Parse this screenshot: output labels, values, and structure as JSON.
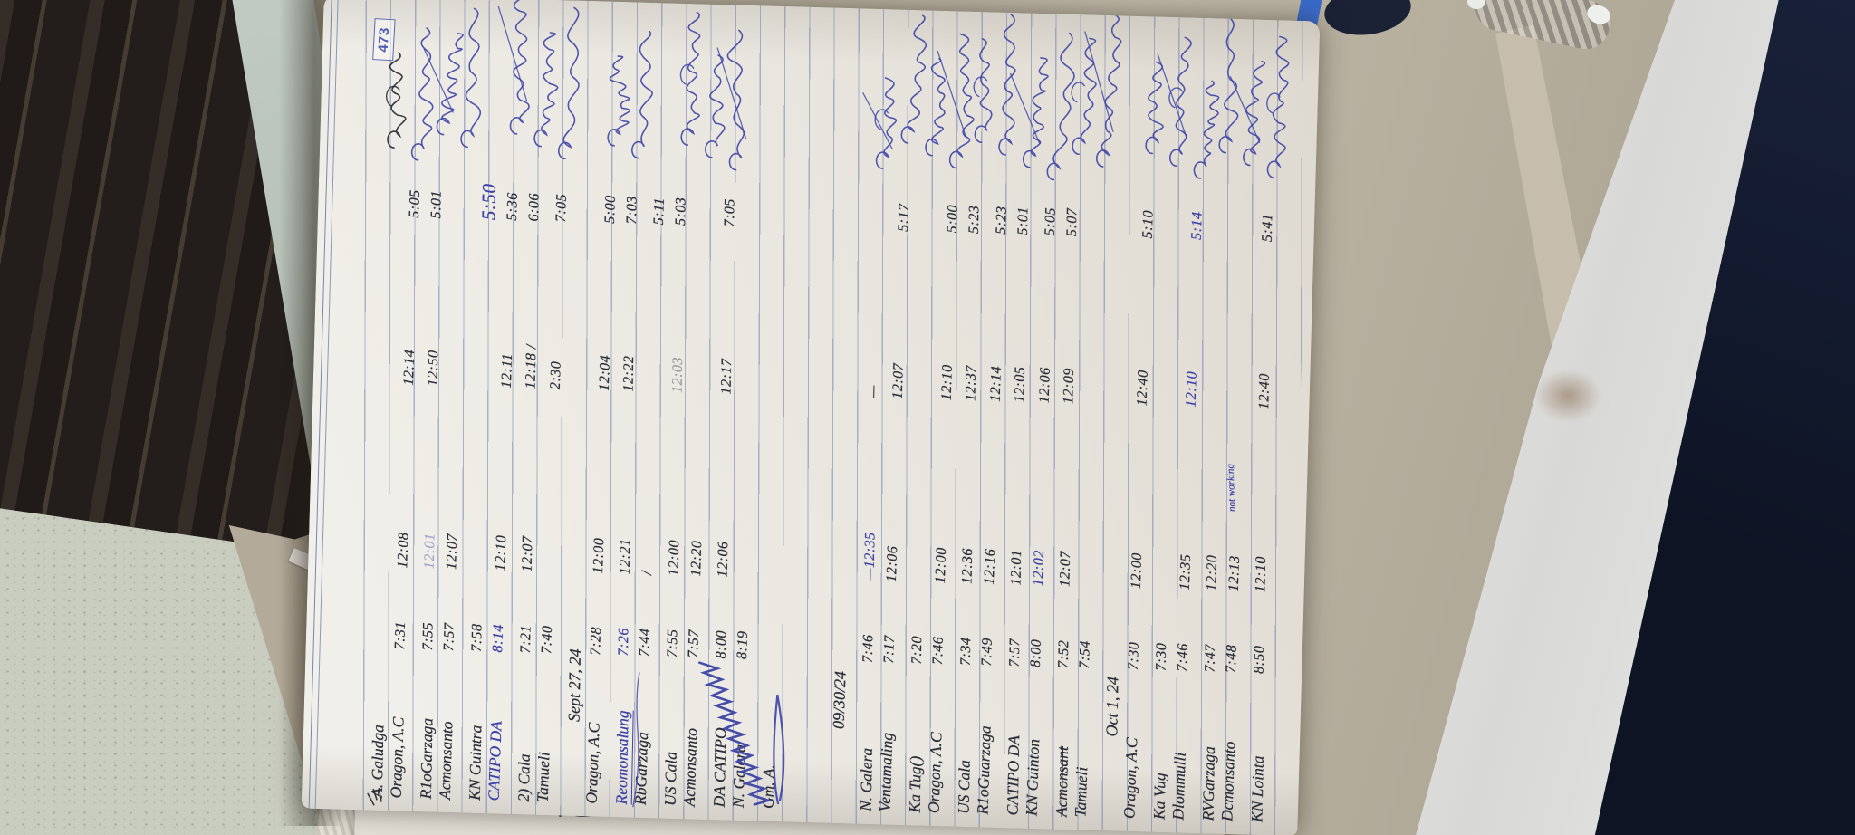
{
  "photo": {
    "description": "handwritten attendance/time logbook page lying on a desk",
    "page_number": "473"
  },
  "colors": {
    "ink_black": "#2c2f3a",
    "ink_blue": "#3a41a8",
    "ruled_line": "#7080ac",
    "paper": "#ebe8e1",
    "desk": "#b3ab9a",
    "cover_blue": "#3a6bcb",
    "fabric_navy": "#121928",
    "fabric_white": "#e6e5e3",
    "window_frame": "#282220"
  },
  "page": {
    "number": "473",
    "rows": [
      {
        "slot": 2,
        "name": "A. Galudga",
        "sig": "black"
      },
      {
        "slot": 3,
        "name": "Oragon, A.C",
        "am": "7:31",
        "t2": "12:08",
        "t3": "12:14",
        "t4": "5:05",
        "sig": "blue"
      },
      {
        "slot": 4,
        "name": "R1oGarzaga",
        "am": "7:55",
        "t2": "12:01",
        "t3": "12:50",
        "t4": "5:01",
        "cls": {
          "t2": "faint blue"
        },
        "sig": "blue"
      },
      {
        "slot": 5,
        "name": "Acmonsanto",
        "am": "7:57",
        "t2": "12:07",
        "sig": "blue"
      },
      {
        "slot": 6,
        "name": "KN Guintra",
        "am": "7:58",
        "t4": "5:50",
        "cls": {
          "t4": "blue big"
        }
      },
      {
        "slot": 7,
        "name": "CATIPO DA",
        "am": "8:14",
        "t2": "12:10",
        "t3": "12:11",
        "t4": "5:36",
        "ink": "blue",
        "sig": "blue"
      },
      {
        "slot": 8,
        "name": "2) Cala",
        "am": "7:21",
        "t2": "12:07",
        "t3": "12:18 /",
        "t4": "6:06",
        "sig": "blue"
      },
      {
        "slot": 9,
        "name": "Tamueli",
        "am": "7:40",
        "t3": "2:30",
        "t4": "7:05",
        "sig": "blue"
      },
      {
        "slot": 10,
        "type": "date",
        "date": "Sept 27, 24"
      },
      {
        "slot": 11,
        "name": "Oragon, A.C",
        "am": "7:28",
        "t2": "12:00",
        "t3": "12:04",
        "t4": "5:00",
        "sig": "blue"
      },
      {
        "slot": 12,
        "name": "Reomonsalung",
        "am": "7:26",
        "t2": "12:21",
        "t3": "12:22",
        "t4": "7:03",
        "ink": "blue",
        "underline": true,
        "sig": "blue"
      },
      {
        "slot": 13,
        "name": "RbGarzaga",
        "am": "7:44",
        "t2": "/",
        "t4": "5:11"
      },
      {
        "slot": 14,
        "name": "US Cala",
        "am": "7:55",
        "t2": "12:00",
        "t3": "12:03",
        "t4": "5:03",
        "cls": {
          "t3": "faint"
        },
        "sig": "blue"
      },
      {
        "slot": 15,
        "name": "Acmonsanto",
        "am": "7:57",
        "t2": "12:20",
        "sig": "blue"
      },
      {
        "slot": 16,
        "name": "DA CATIPO",
        "am": "8:00",
        "t2": "12:06",
        "t3": "12:17",
        "t4": "7:05",
        "sig": "blue"
      },
      {
        "slot": 17,
        "name": "N. Galera",
        "am": "8:19"
      },
      {
        "slot": 18,
        "type": "scribble",
        "name": "Gm. A."
      },
      {
        "slot": 21,
        "type": "date",
        "date": "09/30/24"
      },
      {
        "slot": 22,
        "name": "N. Galera",
        "am": "7:46",
        "t2": "—12:35",
        "t3": "—",
        "cls": {
          "t2": "blue"
        },
        "sig": "blue"
      },
      {
        "slot": 23,
        "name": "Ventamaling",
        "am": "7:17",
        "t2": "12:06",
        "t3": "12:07",
        "t4": "5:17",
        "sig": "blue"
      },
      {
        "slot": 24,
        "name": "Ka Tug()",
        "am": "7:20",
        "sig": "blue"
      },
      {
        "slot": 25,
        "name": "Oragon, A.C",
        "am": "7:46",
        "t2": "12:00",
        "t3": "12:10",
        "t4": "5:00",
        "sig": "blue"
      },
      {
        "slot": 26,
        "name": "US Cala",
        "am": "7:34",
        "t2": "12:36",
        "t3": "12:37",
        "t4": "5:23",
        "sig": "blue"
      },
      {
        "slot": 27,
        "name": "R1oGuarzaga",
        "am": "7:49",
        "t2": "12:16",
        "t3": "12:14",
        "t4": "5:23",
        "sig": "blue"
      },
      {
        "slot": 28,
        "name": "CATIPO DA",
        "am": "7:57",
        "t2": "12:01",
        "t3": "12:05",
        "t4": "5:01",
        "sig": "blue"
      },
      {
        "slot": 29,
        "name": "KN Guinton",
        "am": "8:00",
        "t2": "12:02",
        "t3": "12:06",
        "t4": "5:05",
        "cls": {
          "t2": "blue"
        },
        "sig": "blue"
      },
      {
        "slot": 30,
        "name": "Acmonsant",
        "am": "7:52",
        "t2": "12:07",
        "t3": "12:09",
        "t4": "5:07",
        "strike": true,
        "sig": "blue"
      },
      {
        "slot": 31,
        "name": "Tamueli",
        "am": "7:54",
        "sig": "blue"
      },
      {
        "slot": 32,
        "type": "date",
        "date": "Oct 1, 24"
      },
      {
        "slot": 33,
        "name": "Oragon, A.C",
        "am": "7:30",
        "t2": "12:00",
        "t3": "12:40",
        "t4": "5:10",
        "sig": "blue"
      },
      {
        "slot": 34,
        "name": "Ka Vug",
        "am": "7:30",
        "sig": "blue"
      },
      {
        "slot": 35,
        "name": "Dlommulli",
        "am": "7:46",
        "t2": "12:35",
        "t3": "12:10",
        "t4": "5:14",
        "cls": {
          "t3": "blue",
          "t4": "blue"
        },
        "sig": "blue"
      },
      {
        "slot": 36,
        "name": "RVGarzaga",
        "am": "7:47",
        "t2": "12:20",
        "sig": "blue"
      },
      {
        "slot": 37,
        "name": "Dcmonsanto",
        "am": "7:48",
        "t2": "12:13",
        "note": "not working",
        "sig": "blue"
      },
      {
        "slot": 38,
        "name": "KN Lointa",
        "am": "8:50",
        "t2": "12:10",
        "t3": "12:40",
        "t4": "5:41",
        "sig": "blue"
      }
    ]
  }
}
